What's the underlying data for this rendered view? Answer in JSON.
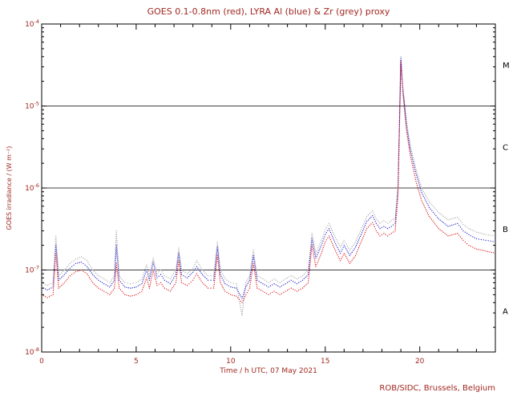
{
  "credit": "ROB/SIDC, Brussels, Belgium",
  "colors": {
    "text": "#a02820",
    "axis": "#000000",
    "goes_red": "#dd1515",
    "lyra_al_blue": "#2020cc",
    "lyra_zr_grey": "#a8a8a8"
  },
  "chart_data": {
    "type": "scatter",
    "title": "GOES 0.1-0.8nm (red), LYRA Al (blue) & Zr (grey) proxy",
    "xlabel": "Time / h UTC, 07 May 2021",
    "ylabel": "GOES irradiance / (W m⁻²)",
    "xlim": [
      0,
      24
    ],
    "ylim_log10": [
      -8,
      -4
    ],
    "x_major_ticks": [
      0,
      5,
      10,
      15,
      20
    ],
    "y_tick_exponents": [
      -8,
      -7,
      -6,
      -5,
      -4
    ],
    "hlines": [
      1e-07,
      1e-06,
      1e-05
    ],
    "class_labels": [
      {
        "label": "M",
        "log10_center": -4.5
      },
      {
        "label": "C",
        "log10_center": -5.5
      },
      {
        "label": "B",
        "log10_center": -6.5
      },
      {
        "label": "A",
        "log10_center": -7.5
      }
    ],
    "x": [
      0,
      0.3,
      0.6,
      0.75,
      0.9,
      1.2,
      1.5,
      1.8,
      2.1,
      2.4,
      2.7,
      3.0,
      3.3,
      3.6,
      3.85,
      3.95,
      4.1,
      4.4,
      4.7,
      5.0,
      5.3,
      5.55,
      5.7,
      5.9,
      6.1,
      6.3,
      6.5,
      6.8,
      7.1,
      7.25,
      7.4,
      7.7,
      8.0,
      8.2,
      8.5,
      8.8,
      9.1,
      9.3,
      9.45,
      9.7,
      10.0,
      10.3,
      10.6,
      10.8,
      11.0,
      11.2,
      11.4,
      11.7,
      12.0,
      12.3,
      12.6,
      12.9,
      13.2,
      13.5,
      13.8,
      14.1,
      14.3,
      14.5,
      14.8,
      15.0,
      15.2,
      15.5,
      15.8,
      16.0,
      16.3,
      16.6,
      16.9,
      17.2,
      17.5,
      17.7,
      17.9,
      18.1,
      18.3,
      18.5,
      18.7,
      18.85,
      19.0,
      19.1,
      19.3,
      19.5,
      19.8,
      20.1,
      20.5,
      21.0,
      21.5,
      22.0,
      22.3,
      22.6,
      23.0,
      23.5,
      24.0
    ],
    "series": [
      {
        "id": "goes-red",
        "name": "GOES 0.1-0.8nm",
        "color": "#dd1515",
        "values": [
          5e-08,
          4.6e-08,
          5e-08,
          1.6e-07,
          6e-08,
          7e-08,
          8.5e-08,
          9.5e-08,
          1e-07,
          9e-08,
          7e-08,
          6e-08,
          5.5e-08,
          5e-08,
          6e-08,
          1.2e-07,
          6e-08,
          5e-08,
          4.8e-08,
          5e-08,
          5.5e-08,
          8e-08,
          6e-08,
          1e-07,
          6.5e-08,
          7e-08,
          6e-08,
          5.5e-08,
          7e-08,
          1.3e-07,
          7e-08,
          6.5e-08,
          7.5e-08,
          9e-08,
          7e-08,
          6e-08,
          6e-08,
          1.5e-07,
          7e-08,
          5.5e-08,
          5e-08,
          4.8e-08,
          4e-08,
          5e-08,
          6e-08,
          1.2e-07,
          6e-08,
          5.5e-08,
          5e-08,
          5.5e-08,
          5e-08,
          5.5e-08,
          6e-08,
          5.5e-08,
          6e-08,
          7e-08,
          2e-07,
          1.1e-07,
          1.6e-07,
          2.2e-07,
          2.6e-07,
          1.8e-07,
          1.3e-07,
          1.6e-07,
          1.2e-07,
          1.5e-07,
          2.2e-07,
          3.2e-07,
          3.8e-07,
          3e-07,
          2.6e-07,
          2.8e-07,
          2.6e-07,
          2.8e-07,
          3e-07,
          8e-07,
          3.5e-05,
          1.5e-05,
          5e-06,
          2.5e-06,
          1.2e-06,
          7e-07,
          4.5e-07,
          3.2e-07,
          2.6e-07,
          2.8e-07,
          2.3e-07,
          2e-07,
          1.8e-07,
          1.7e-07,
          1.6e-07
        ]
      },
      {
        "id": "lyra-al-blue",
        "name": "LYRA Al proxy",
        "color": "#2020cc",
        "values": [
          6.2e-08,
          5.7e-08,
          6.2e-08,
          2e-07,
          7.5e-08,
          8.8e-08,
          1.05e-07,
          1.2e-07,
          1.25e-07,
          1.1e-07,
          8.8e-08,
          7.5e-08,
          6.8e-08,
          6.2e-08,
          7.5e-08,
          2e-07,
          7.5e-08,
          6.2e-08,
          6e-08,
          6.2e-08,
          6.8e-08,
          1e-07,
          7.5e-08,
          1.25e-07,
          8e-08,
          8.8e-08,
          7.5e-08,
          6.8e-08,
          8.8e-08,
          1.6e-07,
          8.8e-08,
          8e-08,
          9.4e-08,
          1.1e-07,
          8.8e-08,
          7.5e-08,
          7.5e-08,
          1.9e-07,
          8.8e-08,
          6.8e-08,
          6.2e-08,
          6e-08,
          4.5e-08,
          6.2e-08,
          7.5e-08,
          1.5e-07,
          7.5e-08,
          6.8e-08,
          6.2e-08,
          6.8e-08,
          6.2e-08,
          6.8e-08,
          7.5e-08,
          6.8e-08,
          7.5e-08,
          8.8e-08,
          2.4e-07,
          1.4e-07,
          2e-07,
          2.7e-07,
          3.2e-07,
          2.2e-07,
          1.6e-07,
          2e-07,
          1.5e-07,
          1.9e-07,
          2.7e-07,
          3.9e-07,
          4.6e-07,
          3.7e-07,
          3.2e-07,
          3.4e-07,
          3.2e-07,
          3.4e-07,
          3.7e-07,
          9.5e-07,
          3.8e-05,
          1.7e-05,
          5.8e-06,
          2.9e-06,
          1.5e-06,
          8.8e-07,
          5.8e-07,
          4.2e-07,
          3.4e-07,
          3.7e-07,
          3e-07,
          2.7e-07,
          2.4e-07,
          2.3e-07,
          2.2e-07
        ]
      },
      {
        "id": "lyra-zr-grey",
        "name": "LYRA Zr proxy",
        "color": "#a8a8a8",
        "values": [
          7e-08,
          6.5e-08,
          7e-08,
          2.6e-07,
          8.5e-08,
          1e-07,
          1.2e-07,
          1.35e-07,
          1.45e-07,
          1.3e-07,
          1e-07,
          8.5e-08,
          7.8e-08,
          7e-08,
          8.5e-08,
          3e-07,
          8.5e-08,
          7e-08,
          6.8e-08,
          7e-08,
          7.8e-08,
          1.15e-07,
          8.5e-08,
          1.4e-07,
          9e-08,
          1e-07,
          8.5e-08,
          7.8e-08,
          1e-07,
          1.85e-07,
          1e-07,
          9e-08,
          1.05e-07,
          1.3e-07,
          1e-07,
          8.5e-08,
          8.5e-08,
          2.2e-07,
          1e-07,
          7.8e-08,
          7e-08,
          6.8e-08,
          2.8e-08,
          7e-08,
          8.5e-08,
          1.75e-07,
          8.5e-08,
          7.8e-08,
          7e-08,
          7.8e-08,
          7e-08,
          7.8e-08,
          8.5e-08,
          7.8e-08,
          8.5e-08,
          1e-07,
          2.8e-07,
          1.6e-07,
          2.3e-07,
          3.1e-07,
          3.7e-07,
          2.6e-07,
          1.9e-07,
          2.3e-07,
          1.75e-07,
          2.2e-07,
          3.1e-07,
          4.5e-07,
          5.3e-07,
          4.2e-07,
          3.7e-07,
          4e-07,
          3.7e-07,
          4e-07,
          4.3e-07,
          1.1e-06,
          4e-05,
          1.8e-05,
          6.5e-06,
          3.3e-06,
          1.7e-06,
          1e-06,
          6.8e-07,
          5e-07,
          4.1e-07,
          4.4e-07,
          3.6e-07,
          3.2e-07,
          2.9e-07,
          2.7e-07,
          2.6e-07
        ]
      }
    ]
  }
}
